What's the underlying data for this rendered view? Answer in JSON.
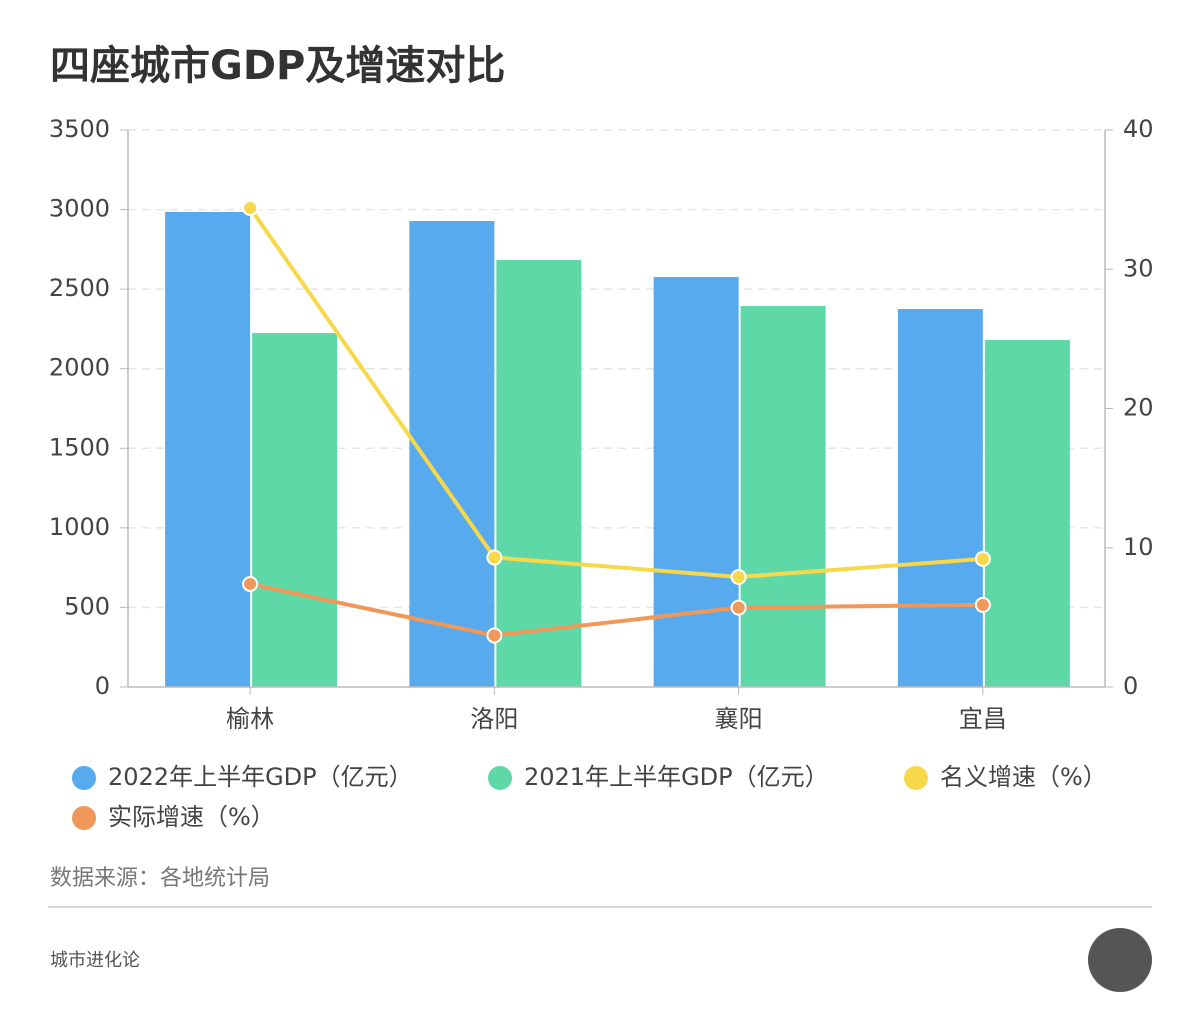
{
  "chart_data": {
    "type": "bar",
    "title": "四座城市GDP及增速对比",
    "categories": [
      "榆林",
      "洛阳",
      "襄阳",
      "宜昌"
    ],
    "series": [
      {
        "name": "2022年上半年GDP（亿元）",
        "color": "#58aaee",
        "type": "bar",
        "values": [
          2985,
          2928,
          2576,
          2375
        ]
      },
      {
        "name": "2021年上半年GDP（亿元）",
        "color": "#5fd8a8",
        "type": "bar",
        "values": [
          2224,
          2683,
          2394,
          2180
        ]
      },
      {
        "name": "名义增速（%）",
        "color": "#f7d84a",
        "type": "line",
        "axis": "y2",
        "values": [
          34.4,
          9.3,
          7.9,
          9.2
        ]
      },
      {
        "name": "实际增速（%）",
        "color": "#f0975a",
        "type": "line",
        "axis": "y2",
        "values": [
          7.4,
          3.7,
          5.7,
          5.9
        ]
      }
    ],
    "ylim": [
      0,
      3500
    ],
    "yticks": [
      0,
      500,
      1000,
      1500,
      2000,
      2500,
      3000,
      3500
    ],
    "y2lim": [
      0,
      40
    ],
    "y2ticks": [
      0,
      10,
      20,
      30,
      40
    ],
    "grid": true,
    "source": "数据来源：各地统计局",
    "footer": "城市进化论"
  }
}
